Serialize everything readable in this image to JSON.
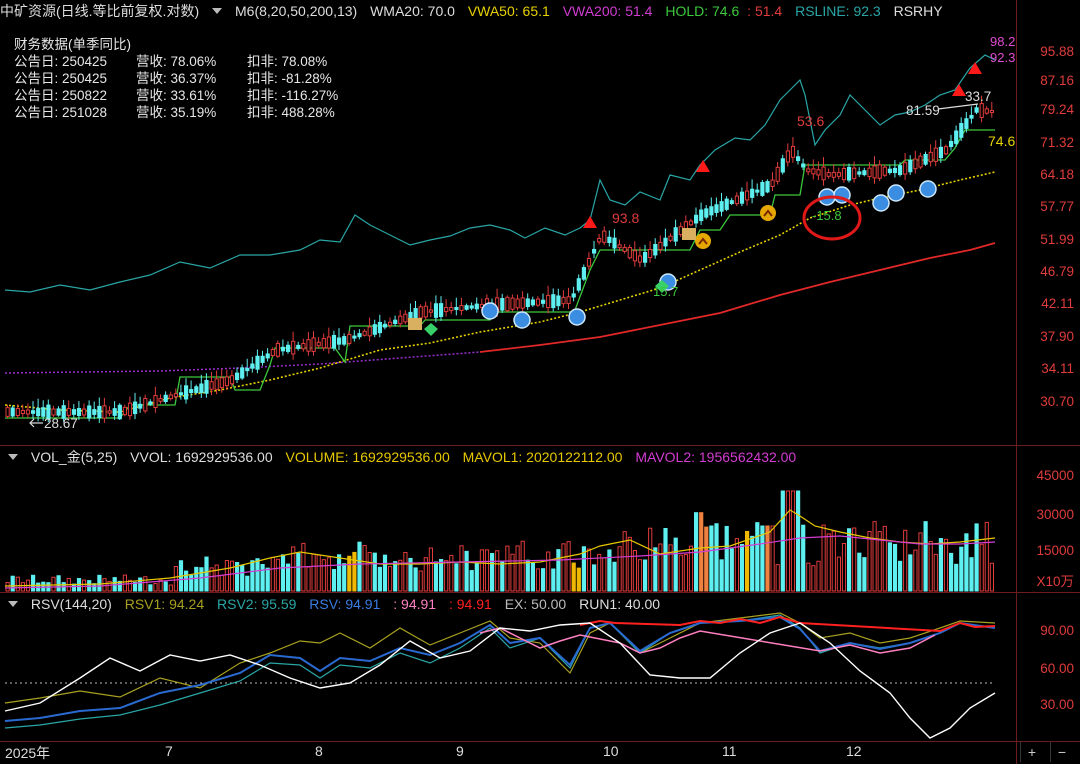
{
  "main_header": {
    "stock": "中矿资源(日线.等比前复权.对数)",
    "m6": "M6(8,20,50,200,13)",
    "wma20": "WMA20: 70.0",
    "vwa50": "VWA50: 65.1",
    "vwa200": "VWA200: 51.4",
    "hold": "HOLD: 74.6",
    "hold2": ": 51.4",
    "rsline": "RSLINE: 92.3",
    "rsrhy": "RSRHY"
  },
  "financials": {
    "title": "财务数据(单季同比)",
    "rows": [
      {
        "date": "公告日: 250425",
        "rev": "营收:  78.06%",
        "kf": "扣非:  78.08%"
      },
      {
        "date": "公告日: 250425",
        "rev": "营收:  36.37%",
        "kf": "扣非:  -81.28%"
      },
      {
        "date": "公告日: 250822",
        "rev": "营收:  33.61%",
        "kf": "扣非:  -116.27%"
      },
      {
        "date": "公告日: 251028",
        "rev": "营收:  35.19%",
        "kf": "扣非:  488.28%"
      }
    ]
  },
  "price_axis": [
    "95.88",
    "87.16",
    "79.24",
    "71.32",
    "64.18",
    "57.77",
    "51.99",
    "46.79",
    "42.11",
    "37.90",
    "34.11",
    "30.70"
  ],
  "price_labels": {
    "low": "28.67",
    "high_label": "81.59",
    "rs_top": "98.2",
    "rs_top2": "92.3",
    "pct_337": "33.7",
    "pct_536": "53.6",
    "pct_938": "93.8",
    "pct_157": "15.7",
    "pct_158": "-15.8",
    "hold_right": "74.6"
  },
  "vol_header": {
    "name": "VOL_金(5,25)",
    "vvol": "VVOL: 1692929536.00",
    "volume": "VOLUME: 1692929536.00",
    "mavol1": "MAVOL1: 2020122112.00",
    "mavol2": "MAVOL2: 1956562432.00"
  },
  "vol_axis": [
    "45000",
    "30000",
    "15000"
  ],
  "vol_unit": "X10万",
  "rsv_header": {
    "name": "RSV(144,20)",
    "rsv1": "RSV1: 94.24",
    "rsv2": "RSV2: 95.59",
    "rsv": "RSV: 94.91",
    "v4": ": 94.91",
    "v5": ": 94.91",
    "ex": "EX: 50.00",
    "run1": "RUN1: 40.00"
  },
  "rsv_axis": [
    "90.00",
    "60.00",
    "30.00"
  ],
  "months": [
    "2025年",
    "7",
    "8",
    "9",
    "10",
    "11",
    "12"
  ],
  "zoom": {
    "plus": "+",
    "minus": "−"
  },
  "colors": {
    "up": "#e03c3c",
    "down": "#5ef0f0",
    "ma_yellow": "#e6d200",
    "ma_magenta": "#d23cd2",
    "hold_green": "#3cc83c",
    "rsline_teal": "#2aa6a6"
  }
}
